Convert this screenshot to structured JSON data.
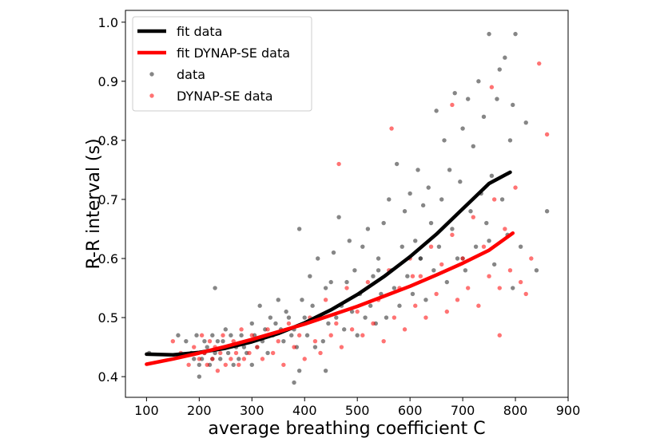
{
  "chart_data": {
    "type": "scatter",
    "title": "",
    "xlabel": "average breathing coefficient C",
    "ylabel": "R-R interval (s)",
    "xlim": [
      60,
      900
    ],
    "ylim": [
      0.365,
      1.02
    ],
    "xticks": [
      100,
      200,
      300,
      400,
      500,
      600,
      700,
      800,
      900
    ],
    "yticks": [
      0.4,
      0.5,
      0.6,
      0.7,
      0.8,
      0.9,
      1.0
    ],
    "xtick_labels": [
      "100",
      "200",
      "300",
      "400",
      "500",
      "600",
      "700",
      "800",
      "900"
    ],
    "ytick_labels": [
      "0.4",
      "0.5",
      "0.6",
      "0.7",
      "0.8",
      "0.9",
      "1.0"
    ],
    "grid": false,
    "legend_position": "top-left",
    "legend": [
      "fit data",
      "fit DYNAP-SE data",
      "data",
      "DYNAP-SE data"
    ],
    "series": [
      {
        "name": "fit data",
        "kind": "line",
        "color": "#000000",
        "x": [
          100,
          150,
          200,
          250,
          300,
          350,
          400,
          450,
          500,
          550,
          600,
          650,
          700,
          750,
          790
        ],
        "y": [
          0.438,
          0.437,
          0.441,
          0.448,
          0.459,
          0.473,
          0.491,
          0.513,
          0.539,
          0.569,
          0.603,
          0.641,
          0.684,
          0.727,
          0.746
        ]
      },
      {
        "name": "fit DYNAP-SE data",
        "kind": "line",
        "color": "#ff0000",
        "x": [
          100,
          150,
          200,
          250,
          300,
          350,
          400,
          450,
          500,
          550,
          600,
          650,
          700,
          750,
          795
        ],
        "y": [
          0.421,
          0.43,
          0.44,
          0.451,
          0.463,
          0.476,
          0.489,
          0.504,
          0.519,
          0.536,
          0.553,
          0.572,
          0.592,
          0.614,
          0.643
        ]
      },
      {
        "name": "data",
        "kind": "scatter",
        "color": "#222222",
        "x": [
          105,
          160,
          175,
          185,
          190,
          195,
          200,
          200,
          205,
          210,
          210,
          215,
          220,
          225,
          225,
          230,
          230,
          235,
          240,
          245,
          250,
          250,
          255,
          260,
          265,
          270,
          275,
          280,
          285,
          290,
          295,
          300,
          300,
          305,
          310,
          315,
          320,
          325,
          330,
          335,
          340,
          345,
          350,
          355,
          360,
          365,
          370,
          375,
          380,
          385,
          390,
          395,
          400,
          405,
          410,
          415,
          420,
          425,
          430,
          435,
          440,
          445,
          450,
          455,
          460,
          465,
          470,
          475,
          480,
          485,
          490,
          495,
          500,
          505,
          510,
          515,
          520,
          525,
          530,
          535,
          540,
          545,
          550,
          555,
          560,
          565,
          570,
          575,
          580,
          585,
          590,
          595,
          600,
          605,
          610,
          615,
          620,
          625,
          630,
          635,
          640,
          645,
          650,
          655,
          660,
          665,
          670,
          675,
          680,
          685,
          690,
          695,
          700,
          705,
          710,
          715,
          720,
          725,
          730,
          735,
          740,
          745,
          750,
          755,
          760,
          765,
          770,
          775,
          780,
          785,
          790,
          795,
          800,
          810,
          820,
          840,
          860,
          380,
          390,
          440,
          540,
          620,
          700,
          750,
          795
        ],
        "y": [
          0.44,
          0.47,
          0.46,
          0.44,
          0.43,
          0.47,
          0.42,
          0.4,
          0.43,
          0.46,
          0.44,
          0.45,
          0.42,
          0.47,
          0.43,
          0.55,
          0.44,
          0.46,
          0.43,
          0.46,
          0.45,
          0.48,
          0.44,
          0.47,
          0.42,
          0.45,
          0.43,
          0.47,
          0.45,
          0.44,
          0.46,
          0.49,
          0.42,
          0.47,
          0.45,
          0.52,
          0.46,
          0.48,
          0.44,
          0.5,
          0.47,
          0.49,
          0.53,
          0.48,
          0.46,
          0.51,
          0.5,
          0.47,
          0.48,
          0.45,
          0.65,
          0.53,
          0.5,
          0.47,
          0.57,
          0.52,
          0.45,
          0.6,
          0.5,
          0.46,
          0.55,
          0.49,
          0.56,
          0.61,
          0.5,
          0.67,
          0.52,
          0.48,
          0.56,
          0.63,
          0.51,
          0.58,
          0.47,
          0.54,
          0.62,
          0.5,
          0.65,
          0.52,
          0.57,
          0.49,
          0.6,
          0.54,
          0.66,
          0.5,
          0.7,
          0.58,
          0.55,
          0.76,
          0.52,
          0.62,
          0.68,
          0.57,
          0.71,
          0.54,
          0.63,
          0.75,
          0.6,
          0.69,
          0.53,
          0.72,
          0.66,
          0.58,
          0.85,
          0.62,
          0.7,
          0.8,
          0.56,
          0.75,
          0.65,
          0.88,
          0.6,
          0.73,
          0.82,
          0.58,
          0.87,
          0.68,
          0.79,
          0.62,
          0.9,
          0.71,
          0.84,
          0.66,
          0.98,
          0.74,
          0.59,
          0.87,
          0.92,
          0.7,
          0.94,
          0.64,
          0.8,
          0.86,
          0.98,
          0.62,
          0.83,
          0.58,
          0.68,
          0.39,
          0.41,
          0.41,
          0.58,
          0.6,
          0.6,
          0.63,
          0.55
        ]
      },
      {
        "name": "DYNAP-SE data",
        "kind": "scatter",
        "color": "#ff0000",
        "x": [
          150,
          165,
          180,
          190,
          200,
          205,
          210,
          215,
          220,
          225,
          230,
          235,
          240,
          245,
          250,
          255,
          260,
          265,
          270,
          275,
          280,
          285,
          290,
          295,
          300,
          310,
          320,
          330,
          340,
          350,
          360,
          370,
          380,
          390,
          400,
          410,
          420,
          430,
          440,
          450,
          460,
          470,
          480,
          490,
          500,
          510,
          520,
          530,
          540,
          550,
          560,
          570,
          580,
          590,
          600,
          610,
          620,
          630,
          640,
          650,
          660,
          670,
          680,
          690,
          700,
          710,
          720,
          730,
          740,
          750,
          760,
          770,
          780,
          790,
          800,
          810,
          820,
          830,
          845,
          860,
          465,
          565,
          605,
          680,
          755,
          770
        ],
        "y": [
          0.46,
          0.44,
          0.42,
          0.45,
          0.43,
          0.47,
          0.44,
          0.42,
          0.46,
          0.43,
          0.45,
          0.41,
          0.44,
          0.47,
          0.42,
          0.45,
          0.43,
          0.46,
          0.44,
          0.42,
          0.48,
          0.43,
          0.46,
          0.44,
          0.47,
          0.45,
          0.43,
          0.48,
          0.44,
          0.46,
          0.42,
          0.49,
          0.45,
          0.47,
          0.43,
          0.5,
          0.46,
          0.44,
          0.53,
          0.47,
          0.49,
          0.45,
          0.55,
          0.48,
          0.51,
          0.47,
          0.56,
          0.49,
          0.53,
          0.46,
          0.58,
          0.5,
          0.55,
          0.48,
          0.6,
          0.52,
          0.57,
          0.5,
          0.62,
          0.54,
          0.59,
          0.51,
          0.64,
          0.53,
          0.6,
          0.55,
          0.67,
          0.52,
          0.62,
          0.57,
          0.7,
          0.55,
          0.65,
          0.58,
          0.72,
          0.56,
          0.54,
          0.6,
          0.93,
          0.81,
          0.76,
          0.82,
          0.57,
          0.86,
          0.89,
          0.47
        ]
      }
    ]
  }
}
